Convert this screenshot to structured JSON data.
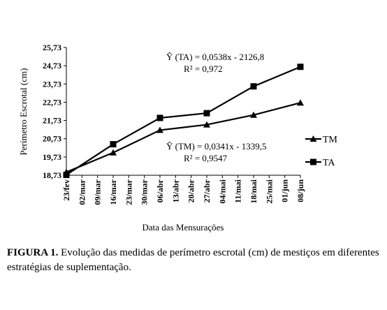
{
  "chart_data": {
    "type": "line",
    "title": "",
    "xlabel": "Data das Mensurações",
    "ylabel": "Perímetro Escrotal (cm)",
    "ylim": [
      18.73,
      25.73
    ],
    "yticks": [
      "25,73",
      "24,73",
      "23,73",
      "22,73",
      "21,73",
      "20,73",
      "19,73",
      "18,73"
    ],
    "ytick_values": [
      25.73,
      24.73,
      23.73,
      22.73,
      21.73,
      20.73,
      19.73,
      18.73
    ],
    "categories": [
      "23/fev",
      "02/mar",
      "09/mar",
      "16/mar",
      "23/mar",
      "30/mar",
      "06/abr",
      "13/abr",
      "20/abr",
      "27/abr",
      "04/mai",
      "11/mai",
      "18/mai",
      "25/mai",
      "01/jun",
      "08/jun"
    ],
    "series": [
      {
        "name": "TM",
        "marker": "triangle",
        "points": [
          {
            "x": "23/fev",
            "y": 18.9
          },
          {
            "x": "16/mar",
            "y": 19.97
          },
          {
            "x": "06/abr",
            "y": 21.2
          },
          {
            "x": "27/abr",
            "y": 21.5
          },
          {
            "x": "18/mai",
            "y": 22.03
          },
          {
            "x": "08/jun",
            "y": 22.7
          }
        ]
      },
      {
        "name": "TA",
        "marker": "square",
        "points": [
          {
            "x": "23/fev",
            "y": 18.75
          },
          {
            "x": "16/mar",
            "y": 20.43
          },
          {
            "x": "06/abr",
            "y": 21.87
          },
          {
            "x": "27/abr",
            "y": 22.13
          },
          {
            "x": "18/mai",
            "y": 23.6
          },
          {
            "x": "08/jun",
            "y": 24.67
          }
        ]
      }
    ],
    "annotations": [
      {
        "line1": "Ŷ (TA) = 0,0538x - 2126,8",
        "line2": "R² = 0,972"
      },
      {
        "line1": "Ŷ  (TM) = 0,0341x - 1339,5",
        "line2": "R² = 0,9547"
      }
    ],
    "legend_position": "right",
    "grid": false
  },
  "caption": {
    "label": "FIGURA 1.",
    "text": " Evolução das medidas de perímetro escrotal (cm) de mestiços em diferentes estratégias de suplementação."
  }
}
